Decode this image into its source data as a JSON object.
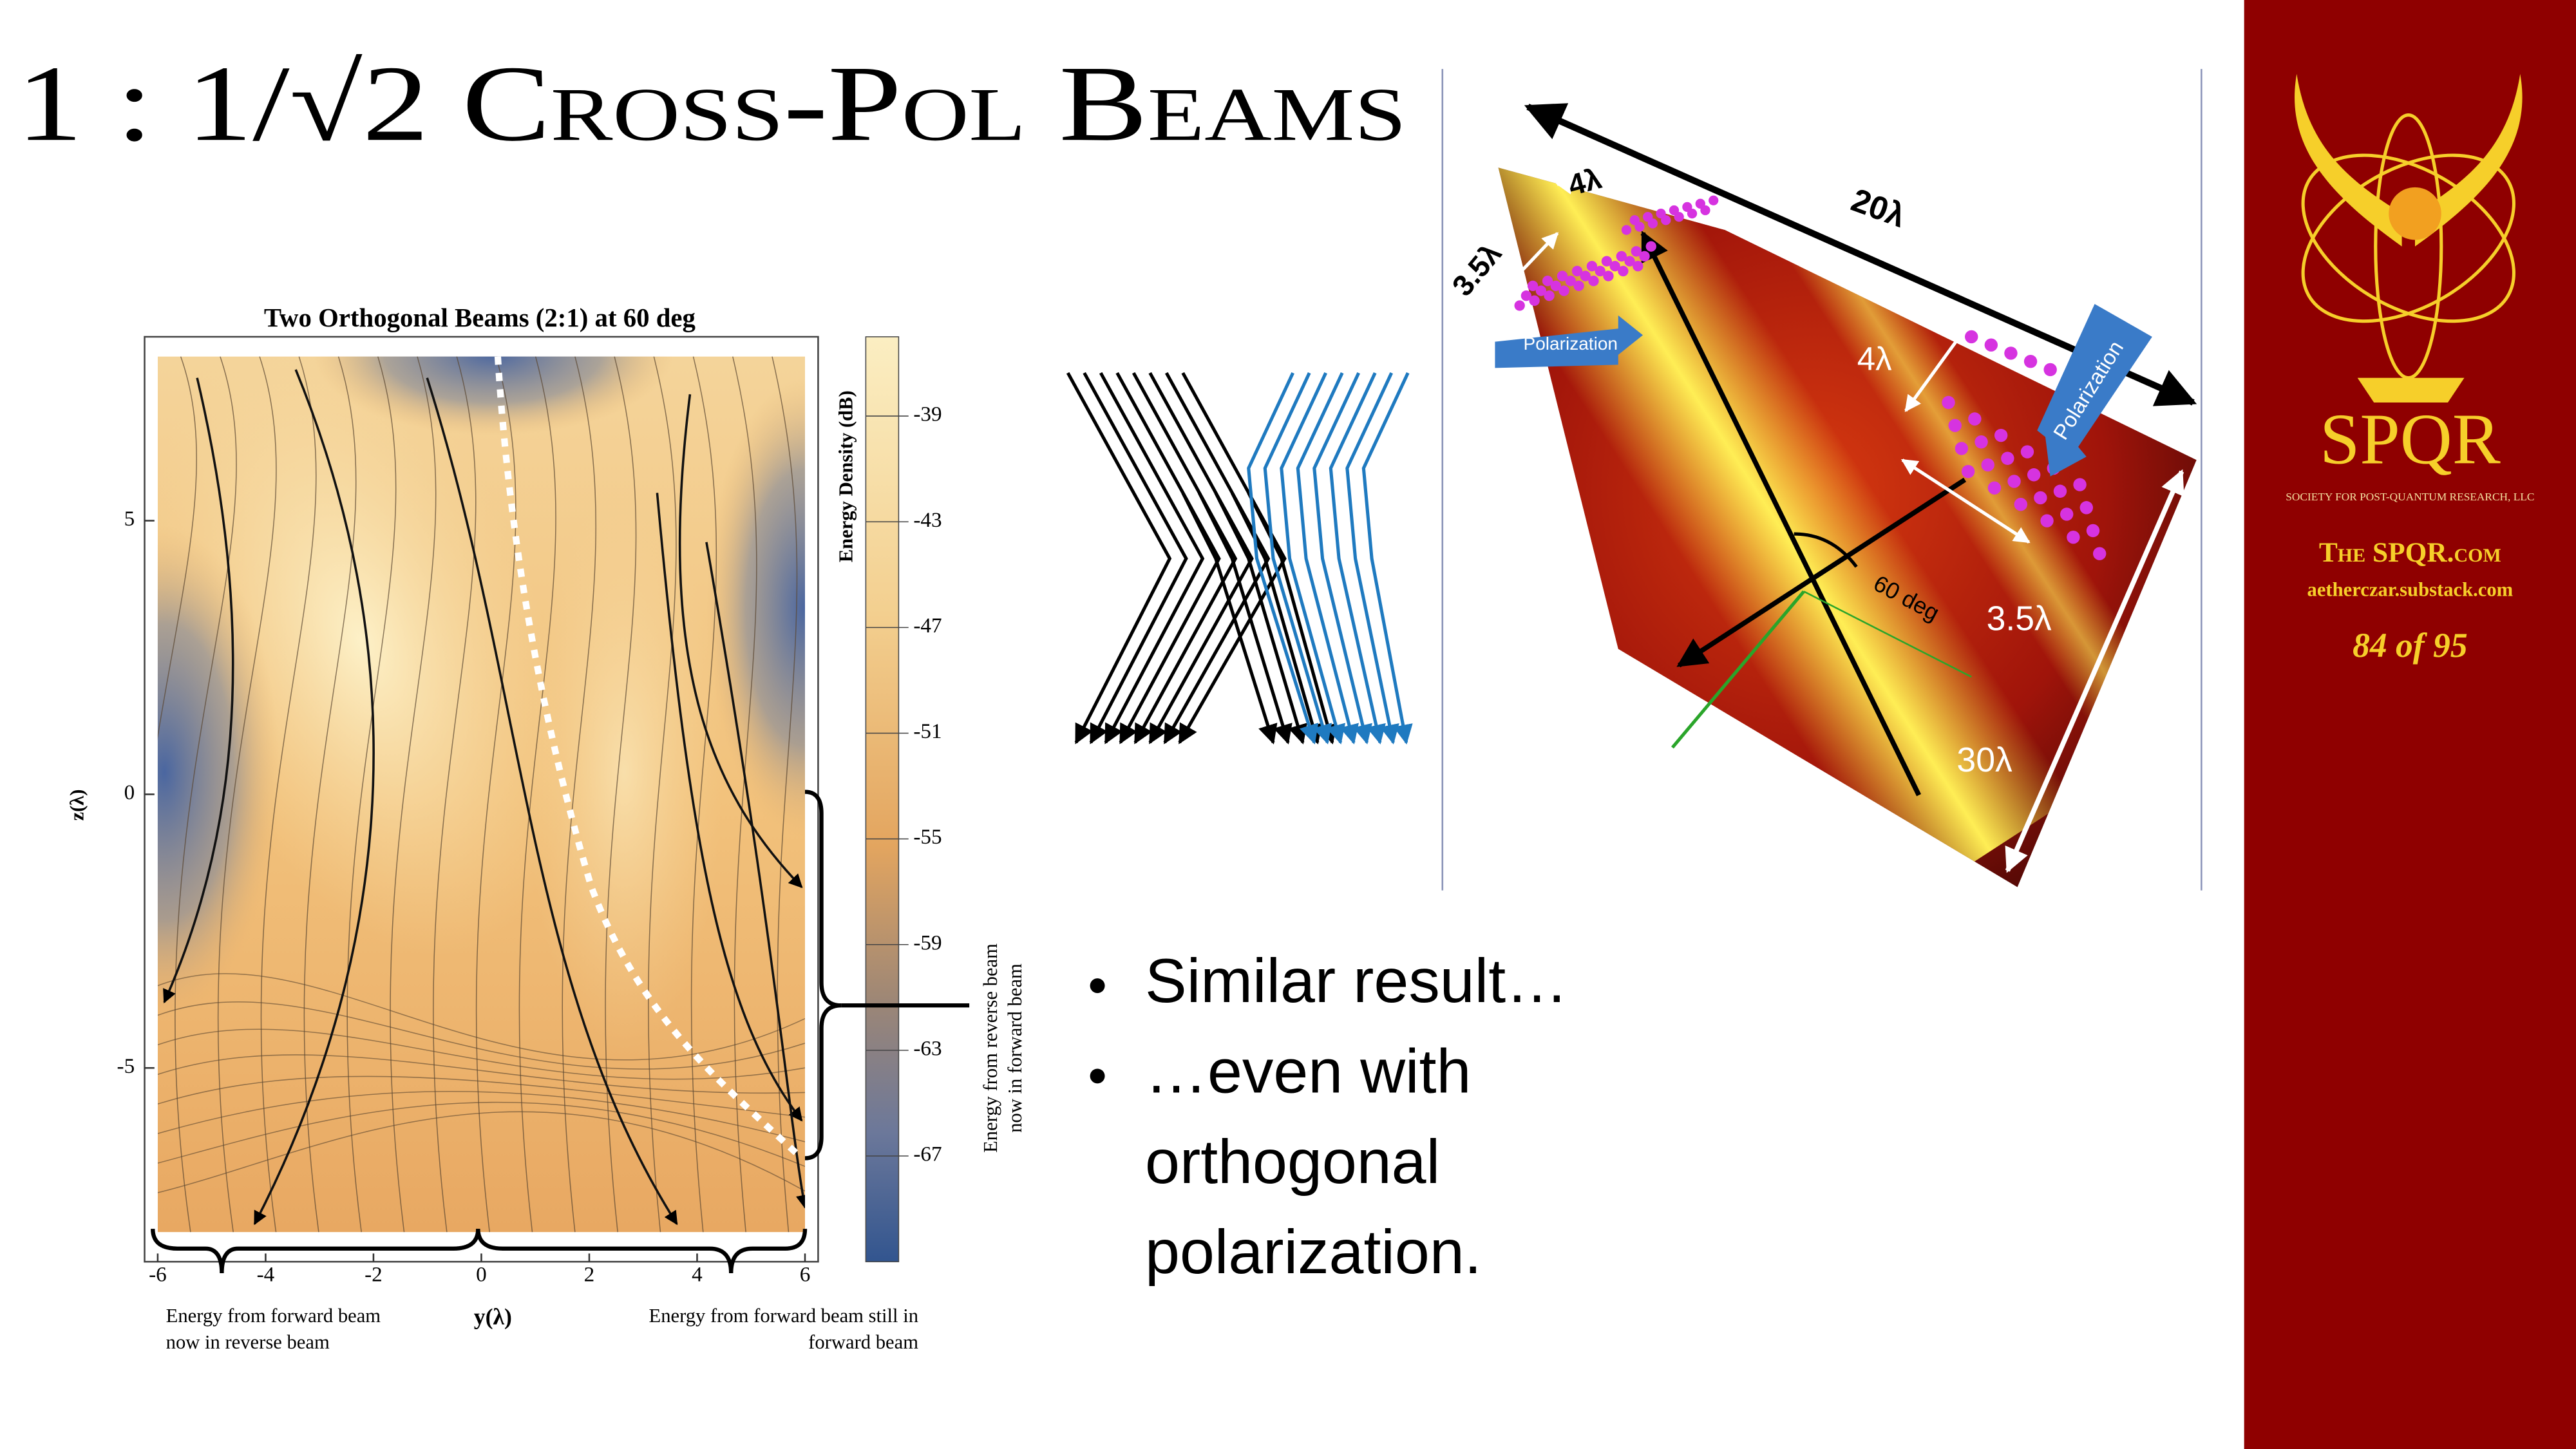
{
  "title": "1 : 1/√2 Cross-Pol Beams",
  "plot": {
    "title": "Two Orthogonal Beams (2:1) at 60 deg",
    "x_label": "y(λ)",
    "y_label": "z(λ)",
    "xlim": [
      -6,
      6
    ],
    "xticks": [
      -6,
      -4,
      -2,
      0,
      2,
      4,
      6
    ],
    "ylim": [
      -8,
      8
    ],
    "yticks": [
      -5,
      0,
      5
    ],
    "colorbar": {
      "label": "Energy Density (dB)",
      "lim": [
        -71,
        -36
      ],
      "ticks": [
        -39,
        -43,
        -47,
        -51,
        -55,
        -59,
        -63,
        -67
      ]
    },
    "annotations": {
      "reverse_to_forward": [
        "Energy from reverse beam",
        "now in forward beam"
      ],
      "forward_to_reverse": [
        "Energy from forward beam",
        "now in reverse beam"
      ],
      "forward_still": [
        "Energy from forward beam still in",
        "forward beam"
      ]
    }
  },
  "render": {
    "labels": [
      "4λ",
      "20λ",
      "3.5λ",
      "4λ",
      "3.5λ",
      "30λ"
    ],
    "angle_label": "60 deg",
    "polarization_labels": [
      "Polarization",
      "Polarization"
    ]
  },
  "bullets": [
    [
      "Similar result…"
    ],
    [
      "…even with",
      "orthogonal",
      "polarization."
    ]
  ],
  "sidebar": {
    "name": "SPQR",
    "subtitle": "SOCIETY FOR POST-QUANTUM RESEARCH, LLC",
    "site": "The SPQR.com",
    "substack": "aetherczar.substack.com",
    "page": "84 of 95"
  }
}
